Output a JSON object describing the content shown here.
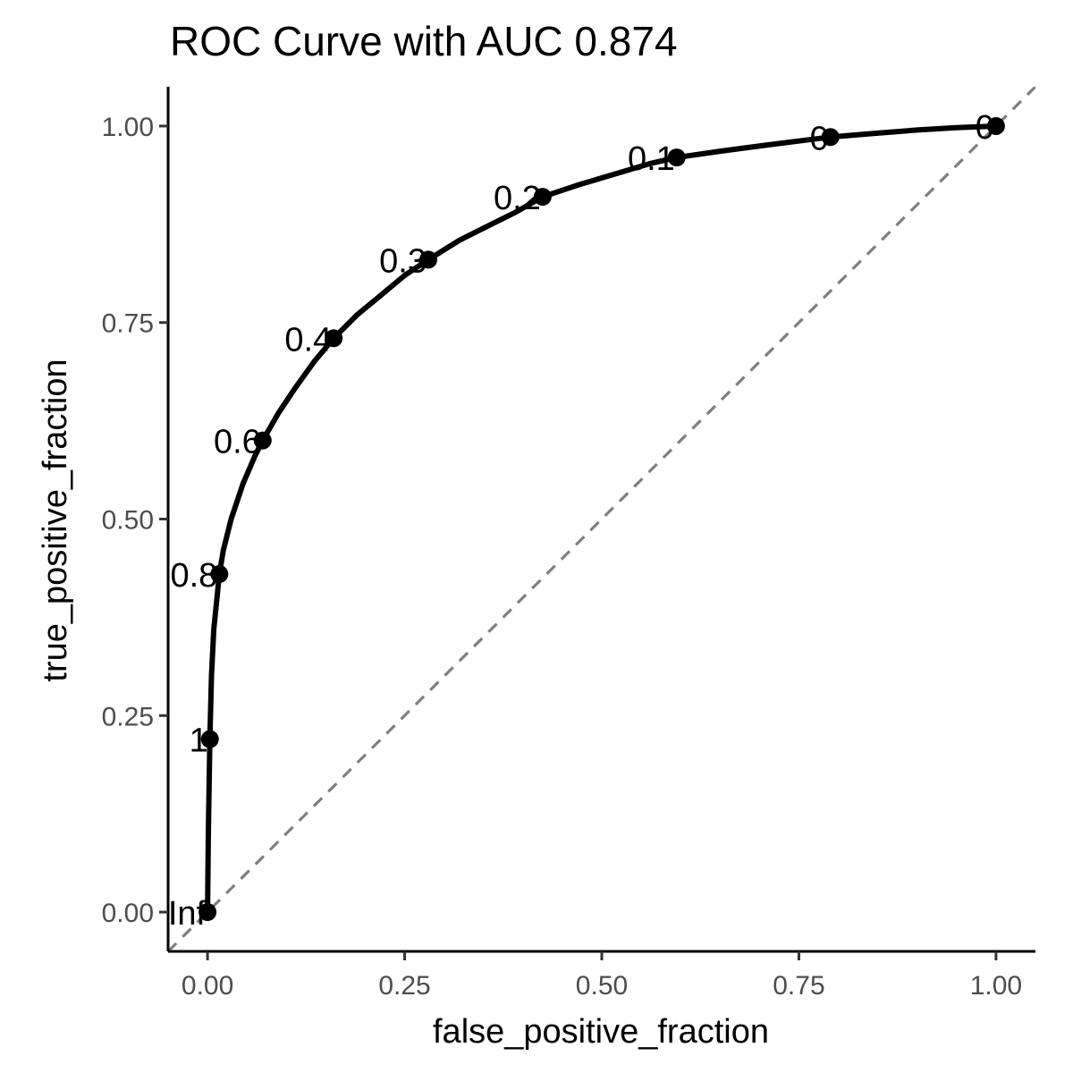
{
  "chart_data": {
    "type": "line",
    "title": "ROC Curve with AUC 0.874",
    "xlabel": "false_positive_fraction",
    "ylabel": "true_positive_fraction",
    "xlim": [
      -0.05,
      1.05
    ],
    "ylim": [
      -0.05,
      1.05
    ],
    "x_ticks": [
      {
        "value": 0,
        "label": "0.00"
      },
      {
        "value": 0.25,
        "label": "0.25"
      },
      {
        "value": 0.5,
        "label": "0.50"
      },
      {
        "value": 0.75,
        "label": "0.75"
      },
      {
        "value": 1,
        "label": "1.00"
      }
    ],
    "y_ticks": [
      {
        "value": 0,
        "label": "0.00"
      },
      {
        "value": 0.25,
        "label": "0.25"
      },
      {
        "value": 0.5,
        "label": "0.50"
      },
      {
        "value": 0.75,
        "label": "0.75"
      },
      {
        "value": 1,
        "label": "1.00"
      }
    ],
    "grid": false,
    "reference_line": {
      "from": [
        0,
        0
      ],
      "to": [
        1,
        1
      ],
      "style": "dashed",
      "color": "#7f7f7f"
    },
    "curve": {
      "color": "#000000",
      "x": [
        0,
        0.001,
        0.003,
        0.005,
        0.008,
        0.012,
        0.015,
        0.02,
        0.03,
        0.045,
        0.06,
        0.07,
        0.09,
        0.11,
        0.135,
        0.16,
        0.19,
        0.22,
        0.25,
        0.28,
        0.32,
        0.36,
        0.39,
        0.425,
        0.47,
        0.52,
        0.56,
        0.595,
        0.65,
        0.71,
        0.75,
        0.79,
        0.85,
        0.9,
        0.95,
        1.0
      ],
      "y": [
        0,
        0.1,
        0.22,
        0.3,
        0.36,
        0.4,
        0.43,
        0.46,
        0.5,
        0.545,
        0.58,
        0.6,
        0.635,
        0.665,
        0.7,
        0.73,
        0.76,
        0.785,
        0.81,
        0.83,
        0.855,
        0.875,
        0.89,
        0.91,
        0.925,
        0.94,
        0.952,
        0.96,
        0.968,
        0.976,
        0.981,
        0.986,
        0.991,
        0.995,
        0.998,
        1.0
      ]
    },
    "cutoff_points": [
      {
        "label": "Inf",
        "x": 0.0,
        "y": 0.0
      },
      {
        "label": "1",
        "x": 0.003,
        "y": 0.22
      },
      {
        "label": "0.8",
        "x": 0.015,
        "y": 0.43
      },
      {
        "label": "0.6",
        "x": 0.07,
        "y": 0.6
      },
      {
        "label": "0.4",
        "x": 0.16,
        "y": 0.73
      },
      {
        "label": "0.3",
        "x": 0.28,
        "y": 0.83
      },
      {
        "label": "0.2",
        "x": 0.425,
        "y": 0.91
      },
      {
        "label": "0.1",
        "x": 0.595,
        "y": 0.96
      },
      {
        "label": "0",
        "x": 0.79,
        "y": 0.986
      },
      {
        "label": "0",
        "x": 1.0,
        "y": 1.0
      }
    ]
  }
}
